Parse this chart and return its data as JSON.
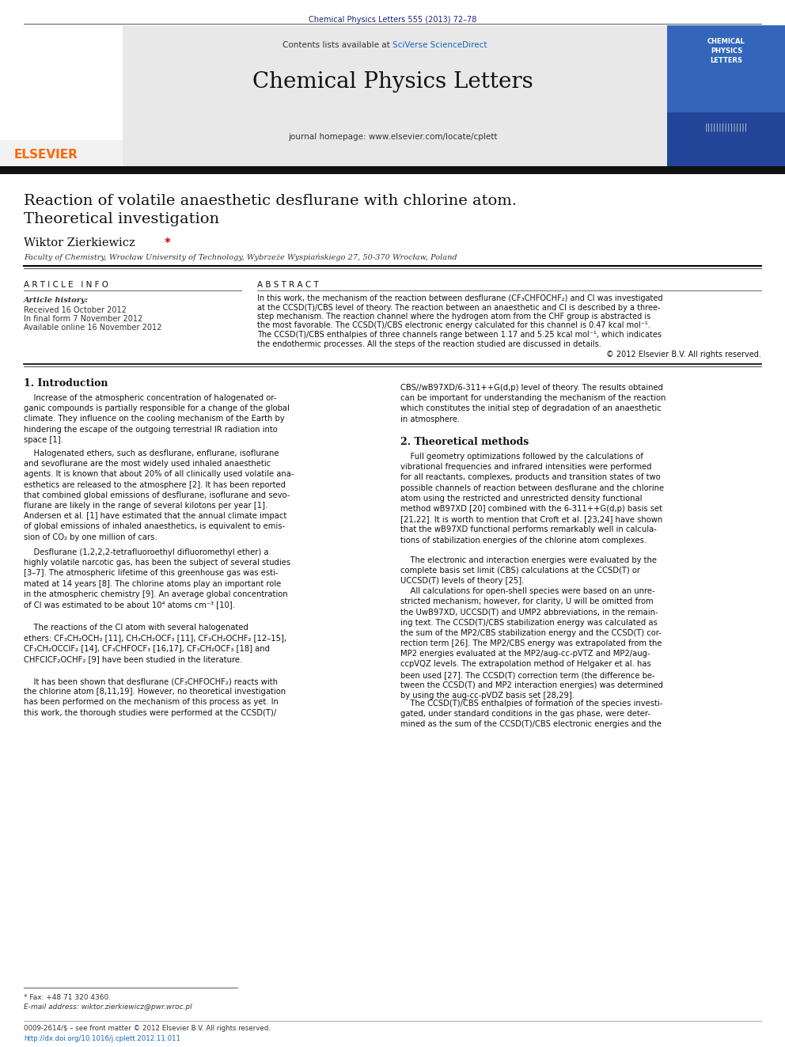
{
  "page_width": 9.92,
  "page_height": 13.23,
  "dpi": 100,
  "bg_color": "#ffffff",
  "header_journal_text": "Chemical Physics Letters 555 (2013) 72–78",
  "header_journal_color": "#1a237e",
  "journal_title": "Chemical Physics Letters",
  "journal_homepage": "journal homepage: www.elsevier.com/locate/cplett",
  "sciverse_color": "#1565c0",
  "elsevier_color": "#ff6600",
  "article_title_line1": "Reaction of volatile anaesthetic desflurane with chlorine atom.",
  "article_title_line2": "Theoretical investigation",
  "affiliation": "Faculty of Chemistry, Wrocław University of Technology, Wybrzeże Wyspiańskiego 27, 50-370 Wrocław, Poland",
  "article_info_header": "A R T I C L E   I N F O",
  "abstract_header": "A B S T R A C T",
  "article_history_label": "Article history:",
  "received": "Received 16 October 2012",
  "in_final": "In final form 7 November 2012",
  "available": "Available online 16 November 2012",
  "copyright": "© 2012 Elsevier B.V. All rights reserved.",
  "intro_header": "1. Introduction",
  "theo_methods_header": "2. Theoretical methods",
  "footnote_star": "* Fax: +48 71 320 4360.",
  "footnote_email": "E-mail address: wiktor.zierkiewicz@pwr.wroc.pl",
  "footer_issn": "0009-2614/$ – see front matter © 2012 Elsevier B.V. All rights reserved.",
  "footer_doi": "http://dx.doi.org/10.1016/j.cplett.2012.11.011"
}
